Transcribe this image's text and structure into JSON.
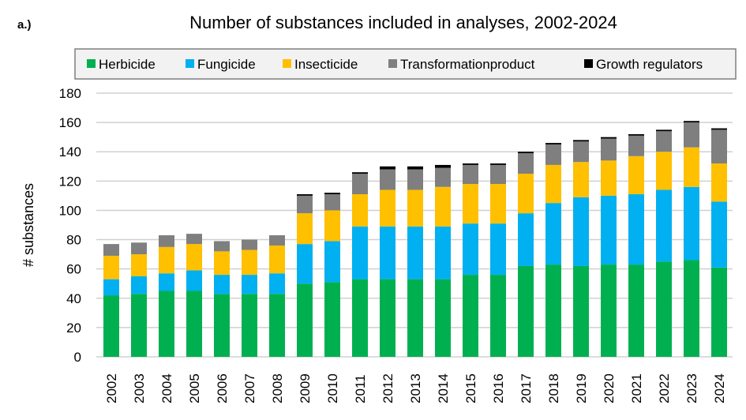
{
  "panel_label": "a.)",
  "chart_data": {
    "type": "bar",
    "stacked": true,
    "title": "Number of substances included in analyses, 2002-2024",
    "xlabel": "",
    "ylabel": "# substances",
    "ylim": [
      0,
      180
    ],
    "yticks": [
      0,
      20,
      40,
      60,
      80,
      100,
      120,
      140,
      160,
      180
    ],
    "grid": true,
    "legend_position": "top",
    "categories": [
      "2002",
      "2003",
      "2004",
      "2005",
      "2006",
      "2007",
      "2008",
      "2009",
      "2010",
      "2011",
      "2012",
      "2013",
      "2014",
      "2015",
      "2016",
      "2017",
      "2018",
      "2019",
      "2020",
      "2021",
      "2022",
      "2023",
      "2024"
    ],
    "series": [
      {
        "name": "Herbicide",
        "color": "#00b050",
        "values": [
          42,
          43,
          45,
          45,
          43,
          43,
          43,
          50,
          51,
          53,
          53,
          53,
          53,
          56,
          56,
          62,
          63,
          62,
          63,
          63,
          65,
          66,
          61
        ]
      },
      {
        "name": "Fungicide",
        "color": "#00b0f0",
        "values": [
          11,
          12,
          12,
          14,
          13,
          13,
          14,
          27,
          28,
          36,
          36,
          36,
          36,
          35,
          35,
          36,
          42,
          47,
          47,
          48,
          49,
          50,
          45
        ]
      },
      {
        "name": "Insecticide",
        "color": "#ffc000",
        "values": [
          16,
          15,
          18,
          18,
          16,
          17,
          19,
          21,
          21,
          22,
          25,
          25,
          27,
          27,
          27,
          27,
          26,
          24,
          24,
          26,
          26,
          27,
          26
        ]
      },
      {
        "name": "Transformationproduct",
        "color": "#7f7f7f",
        "values": [
          8,
          8,
          8,
          7,
          7,
          7,
          7,
          12,
          11,
          14,
          14,
          14,
          13,
          13,
          13,
          14,
          14,
          14,
          15,
          14,
          14,
          17,
          23
        ]
      },
      {
        "name": "Growth regulators",
        "color": "#000000",
        "values": [
          0,
          0,
          0,
          0,
          0,
          0,
          0,
          1,
          1,
          1,
          2,
          2,
          2,
          1,
          1,
          1,
          1,
          1,
          1,
          1,
          1,
          1,
          1
        ]
      }
    ]
  }
}
